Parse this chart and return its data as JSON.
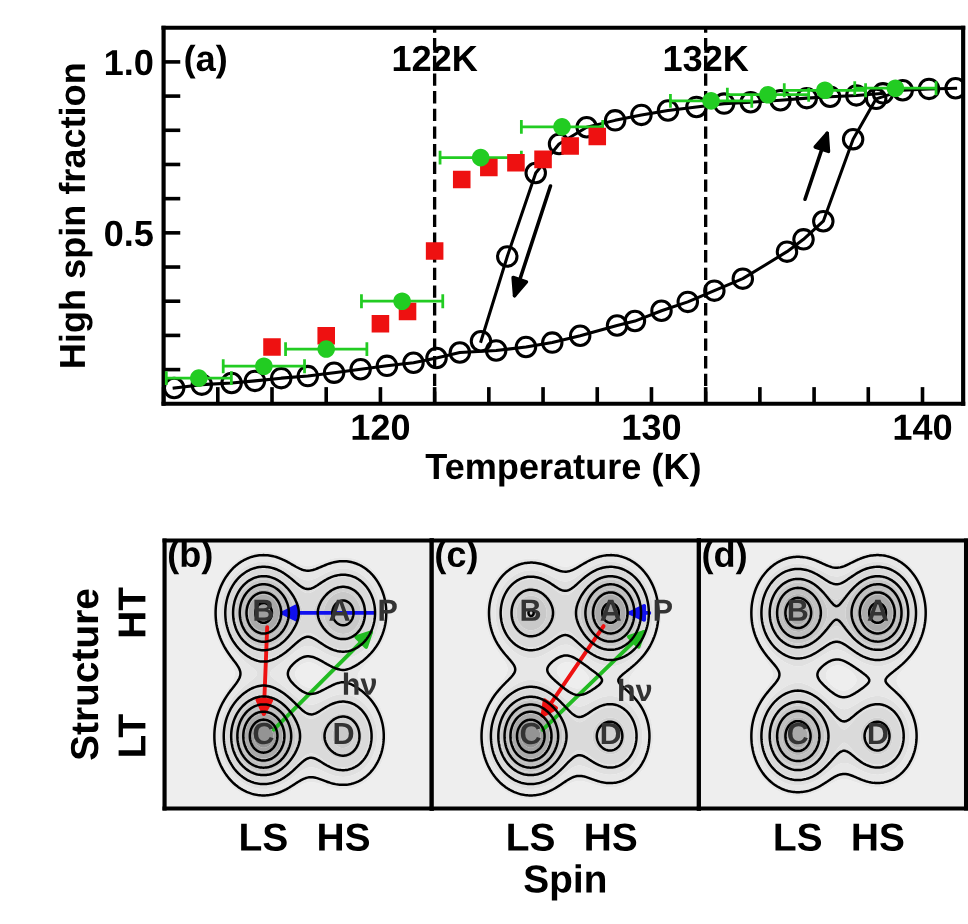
{
  "chart_data": [
    {
      "type": "line",
      "xlabel": "Temperature (K)",
      "ylabel": "High spin fraction",
      "annotations": [
        "(a)"
      ],
      "xlim": [
        112.0,
        141.5
      ],
      "ylim": [
        0,
        1.1
      ],
      "xticks": [
        {
          "value": 112,
          "label": null
        },
        {
          "value": 114,
          "label": null
        },
        {
          "value": 116,
          "label": null
        },
        {
          "value": 118,
          "label": null
        },
        120,
        {
          "value": 122,
          "label": null
        },
        {
          "value": 124,
          "label": null
        },
        {
          "value": 126,
          "label": null
        },
        {
          "value": 128,
          "label": null
        },
        130,
        {
          "value": 132,
          "label": null
        },
        {
          "value": 134,
          "label": null
        },
        {
          "value": 136,
          "label": null
        },
        {
          "value": 138,
          "label": null
        },
        140
      ],
      "yticks": [
        {
          "value": 0.1,
          "label": null
        },
        {
          "value": 0.2,
          "label": null
        },
        {
          "value": 0.3,
          "label": null
        },
        {
          "value": 0.4,
          "label": null
        },
        0.5,
        {
          "value": 0.6,
          "label": null
        },
        {
          "value": 0.7,
          "label": null
        },
        {
          "value": 0.8,
          "label": null
        },
        {
          "value": 0.9,
          "label": null
        },
        {
          "value": 1,
          "label": "1.0"
        }
      ],
      "grid": false,
      "legend": false,
      "ref_lines": [
        {
          "axis": "x",
          "value": 122,
          "label": "122K",
          "color": "#000000",
          "line_style": "dashed"
        },
        {
          "axis": "x",
          "value": 132,
          "label": "132K",
          "color": "#000000",
          "line_style": "dashed"
        }
      ],
      "series": [
        {
          "type": "line",
          "marker": "circle",
          "color": "#000000",
          "x": [
            112.39,
            113.41,
            114.51,
            115.37,
            116.34,
            117.32,
            118.29,
            119.27,
            120.24,
            121.22,
            122.07,
            122.93,
            124.27,
            125.37,
            126.34,
            127.37,
            128.73,
            129.39,
            130.37,
            131.34,
            132.32,
            133.37,
            135.0,
            135.61,
            136.34,
            137.44,
            138.29,
            139.27,
            140.24,
            141.22
          ],
          "values": [
            0.046,
            0.056,
            0.061,
            0.067,
            0.075,
            0.081,
            0.091,
            0.101,
            0.111,
            0.12,
            0.134,
            0.15,
            0.156,
            0.166,
            0.179,
            0.199,
            0.229,
            0.242,
            0.272,
            0.298,
            0.331,
            0.366,
            0.445,
            0.481,
            0.534,
            0.774,
            0.892,
            0.917,
            0.921,
            0.923
          ]
        },
        {
          "type": "line",
          "marker": "circle",
          "color": "#000000",
          "x": [
            123.71,
            124.68,
            125.73,
            126.59,
            127.61,
            128.66,
            129.63,
            130.61,
            131.66,
            132.68,
            133.66,
            134.76,
            135.73,
            136.59,
            137.56,
            138.54
          ],
          "values": [
            0.183,
            0.431,
            0.675,
            0.76,
            0.809,
            0.829,
            0.845,
            0.858,
            0.868,
            0.878,
            0.882,
            0.888,
            0.894,
            0.898,
            0.902,
            0.908
          ]
        },
        {
          "type": "scatter",
          "marker": "square",
          "color": "#ee1111",
          "x": [
            116.0,
            118.0,
            120.0,
            121.0,
            122.0,
            123.0,
            124.0,
            125.0,
            126.0,
            127.0,
            128.0
          ],
          "values": [
            0.166,
            0.199,
            0.234,
            0.27,
            0.447,
            0.656,
            0.691,
            0.705,
            0.715,
            0.754,
            0.782
          ]
        },
        {
          "type": "scatter",
          "marker": "circle",
          "color": "#22cc22",
          "x": [
            113.3,
            115.7,
            118.0,
            120.8,
            123.7,
            126.7,
            132.2,
            134.3,
            136.4,
            139.0
          ],
          "values": [
            0.075,
            0.11,
            0.16,
            0.3,
            0.72,
            0.81,
            0.886,
            0.904,
            0.917,
            0.923
          ],
          "xerrors": [
            1.2,
            1.5,
            1.5,
            1.5,
            1.5,
            1.5,
            1.5,
            1.5,
            1.5,
            1.5
          ]
        }
      ]
    },
    {
      "type": "other",
      "ylabel": "Structure",
      "categories": [
        "LS",
        "HS"
      ],
      "y_categories": [
        "HT",
        "LT"
      ],
      "annotations": [
        "(b)",
        "B",
        "A",
        "P",
        "C",
        "D",
        "hν"
      ]
    },
    {
      "type": "other",
      "xlabel": "Spin",
      "categories": [
        "LS",
        "HS"
      ],
      "annotations": [
        "(c)",
        "B",
        "A",
        "P",
        "C",
        "D",
        "hν"
      ]
    },
    {
      "type": "other",
      "categories": [
        "LS",
        "HS"
      ],
      "annotations": [
        "(d)",
        "B",
        "A",
        "C",
        "D"
      ]
    }
  ]
}
